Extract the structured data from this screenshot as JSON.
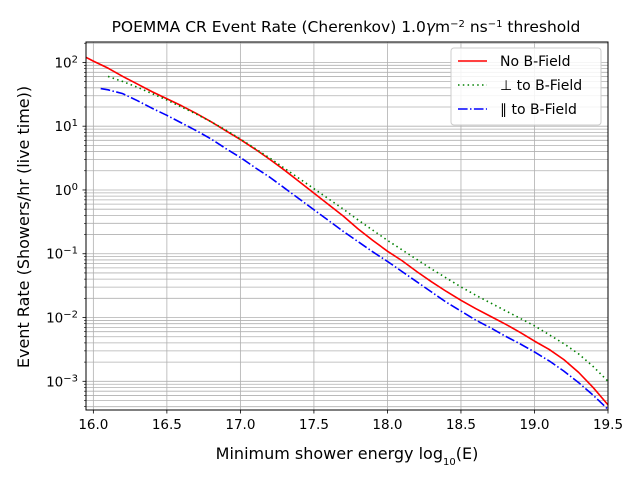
{
  "chart_data": {
    "type": "line",
    "title": {
      "prefix": "POEMMA CR Event Rate (Cherenkov) 1.0",
      "unit_gamma": "γ",
      "unit_m": "m",
      "exp_m": "−2",
      "unit_ns": " ns",
      "exp_ns": "−1",
      "suffix": " threshold"
    },
    "xlabel": {
      "prefix": "Minimum shower energy log",
      "sub": "10",
      "suffix": "(E)"
    },
    "ylabel": "Event Rate (Showers/hr (live time))",
    "xlim": [
      15.95,
      19.5
    ],
    "ylim_log10": [
      -3.45,
      2.32
    ],
    "x_ticks": [
      16.0,
      16.5,
      17.0,
      17.5,
      18.0,
      18.5,
      19.0,
      19.5
    ],
    "x_tick_labels": [
      "16.0",
      "16.5",
      "17.0",
      "17.5",
      "18.0",
      "18.5",
      "19.0",
      "19.5"
    ],
    "y_tick_exponents": [
      -3,
      -2,
      -1,
      0,
      1,
      2
    ],
    "y_tick_base": "10",
    "y_tick_exp_labels": [
      "−3",
      "−2",
      "−1",
      "0",
      "1",
      "2"
    ],
    "grid": true,
    "legend_position": "top-right",
    "series": [
      {
        "name": "No B-Field",
        "color": "#ff0000",
        "style": "solid",
        "x": [
          15.95,
          16.0,
          16.1,
          16.2,
          16.3,
          16.4,
          16.5,
          16.6,
          16.7,
          16.8,
          16.9,
          17.0,
          17.1,
          17.2,
          17.3,
          17.4,
          17.5,
          17.6,
          17.7,
          17.8,
          17.9,
          18.0,
          18.1,
          18.2,
          18.3,
          18.4,
          18.5,
          18.6,
          18.7,
          18.8,
          18.9,
          19.0,
          19.1,
          19.2,
          19.3,
          19.4,
          19.5
        ],
        "log10y": [
          2.08,
          2.02,
          1.91,
          1.78,
          1.66,
          1.54,
          1.43,
          1.32,
          1.2,
          1.07,
          0.93,
          0.79,
          0.64,
          0.48,
          0.31,
          0.13,
          -0.05,
          -0.23,
          -0.41,
          -0.61,
          -0.79,
          -0.96,
          -1.11,
          -1.28,
          -1.44,
          -1.59,
          -1.73,
          -1.86,
          -1.98,
          -2.1,
          -2.23,
          -2.37,
          -2.5,
          -2.66,
          -2.86,
          -3.1,
          -3.37
        ]
      },
      {
        "name": "⊥ to B-Field",
        "color": "#008000",
        "style": "dotted",
        "x": [
          16.1,
          16.2,
          16.3,
          16.4,
          16.5,
          16.6,
          16.7,
          16.8,
          16.9,
          17.0,
          17.1,
          17.2,
          17.3,
          17.4,
          17.5,
          17.6,
          17.7,
          17.8,
          17.9,
          18.0,
          18.1,
          18.2,
          18.3,
          18.4,
          18.5,
          18.6,
          18.7,
          18.8,
          18.9,
          19.0,
          19.1,
          19.2,
          19.3,
          19.4,
          19.5
        ],
        "log10y": [
          1.78,
          1.7,
          1.61,
          1.51,
          1.41,
          1.3,
          1.19,
          1.07,
          0.94,
          0.8,
          0.65,
          0.5,
          0.34,
          0.18,
          0.02,
          -0.14,
          -0.3,
          -0.47,
          -0.63,
          -0.79,
          -0.94,
          -1.09,
          -1.24,
          -1.38,
          -1.52,
          -1.65,
          -1.77,
          -1.89,
          -2.01,
          -2.13,
          -2.27,
          -2.41,
          -2.57,
          -2.77,
          -3.0
        ]
      },
      {
        "name": "∥ to B-Field",
        "color": "#0000ff",
        "style": "dashdot",
        "x": [
          16.05,
          16.1,
          16.2,
          16.3,
          16.4,
          16.5,
          16.6,
          16.7,
          16.8,
          16.9,
          17.0,
          17.1,
          17.2,
          17.3,
          17.4,
          17.5,
          17.6,
          17.7,
          17.8,
          17.9,
          18.0,
          18.1,
          18.2,
          18.3,
          18.4,
          18.5,
          18.6,
          18.7,
          18.8,
          18.9,
          19.0,
          19.1,
          19.2,
          19.3,
          19.4,
          19.5
        ],
        "log10y": [
          1.59,
          1.57,
          1.51,
          1.4,
          1.28,
          1.17,
          1.05,
          0.93,
          0.8,
          0.65,
          0.51,
          0.35,
          0.2,
          0.03,
          -0.14,
          -0.31,
          -0.48,
          -0.65,
          -0.81,
          -0.97,
          -1.12,
          -1.28,
          -1.44,
          -1.6,
          -1.76,
          -1.9,
          -2.04,
          -2.16,
          -2.29,
          -2.41,
          -2.54,
          -2.68,
          -2.84,
          -3.02,
          -3.22,
          -3.44
        ]
      }
    ]
  }
}
